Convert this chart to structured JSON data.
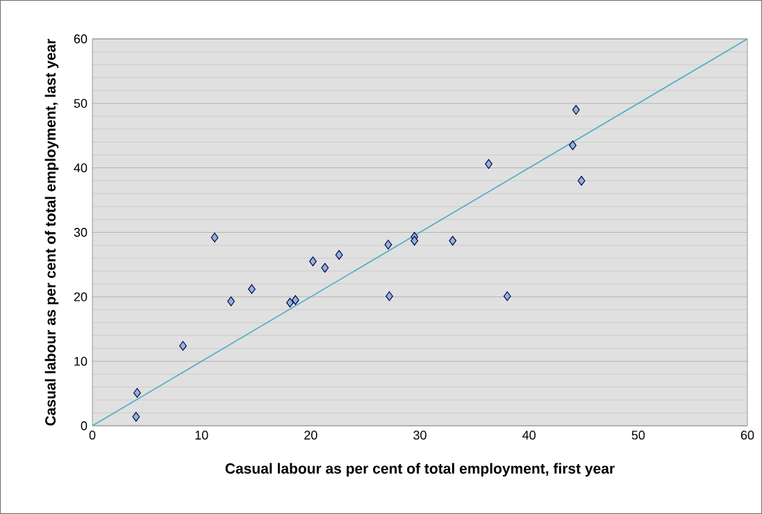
{
  "chart_data": {
    "type": "scatter",
    "xlabel": "Casual labour as per cent of total employment, first year",
    "ylabel": "Casual labour as per cent of total employment, last year",
    "xlim": [
      0,
      60
    ],
    "ylim": [
      0,
      60
    ],
    "xticks": [
      0,
      10,
      20,
      30,
      40,
      50,
      60
    ],
    "yticks": [
      0,
      10,
      20,
      30,
      40,
      50,
      60
    ],
    "grid": "y",
    "marker": "diamond",
    "series": [
      {
        "color": "#95b3d7",
        "x": [
          4.1,
          4.0,
          8.3,
          11.2,
          12.7,
          14.6,
          18.1,
          18.6,
          20.2,
          21.3,
          22.6,
          27.1,
          27.2,
          29.5,
          29.5,
          33.0,
          36.3,
          38.0,
          44.0,
          44.3,
          44.8
        ],
        "values": [
          5.1,
          1.4,
          12.4,
          29.2,
          19.3,
          21.2,
          19.1,
          19.5,
          25.5,
          24.5,
          26.5,
          28.1,
          20.1,
          29.3,
          28.7,
          28.7,
          40.6,
          20.1,
          43.5,
          49.0,
          38.0
        ]
      },
      {
        "type": "line",
        "color": "#4bacc6",
        "marker": "none",
        "x": [
          0,
          60
        ],
        "values": [
          0,
          60
        ]
      }
    ]
  }
}
